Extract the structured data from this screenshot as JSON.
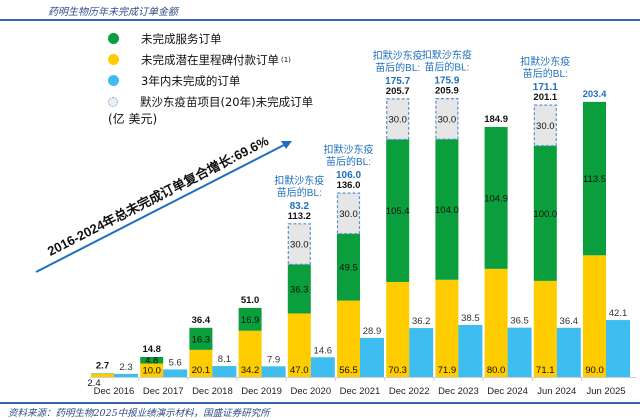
{
  "header": {
    "title": "药明生物历年未完成订单金额"
  },
  "footer": {
    "source": "资料来源：药明生物2025中报业绩演示材料，国盛证券研究所"
  },
  "colors": {
    "service": "#0a9e3c",
    "milestone": "#ffcc00",
    "three_year": "#3dbdf0",
    "vaccine": "#e6e6e6",
    "vaccine_border": "#5b8fd1",
    "accent_blue": "#1f6fbf",
    "rule": "#3a63ad"
  },
  "legend": {
    "items": [
      {
        "label": "未完成服务订单",
        "color": "#0a9e3c",
        "marker": "circle",
        "sup": ""
      },
      {
        "label": "未完成潜在里程碑付款订单",
        "color": "#ffcc00",
        "marker": "circle",
        "sup": "(1)"
      },
      {
        "label": "3年内未完成的订单",
        "color": "#3dbdf0",
        "marker": "circle",
        "sup": ""
      },
      {
        "label": "默沙东疫苗项目(20年)未完成订单",
        "color": "#e6e6e6",
        "marker": "dashed-circle",
        "sup": ""
      }
    ],
    "unit": "(亿 美元)"
  },
  "chart_data": {
    "type": "bar",
    "title": "药明生物历年未完成订单金额",
    "ylabel": "亿美元",
    "categories": [
      "Dec 2016",
      "Dec 2017",
      "Dec 2018",
      "Dec 2019",
      "Dec 2020",
      "Dec 2021",
      "Dec 2022",
      "Dec 2023",
      "Dec 2024",
      "Jun 2024",
      "Jun 2025"
    ],
    "series": [
      {
        "name": "未完成潜在里程碑付款订单",
        "stack": "total",
        "values": [
          2.4,
          10.0,
          20.1,
          34.2,
          47.0,
          56.5,
          70.3,
          71.9,
          80.0,
          71.1,
          90.0
        ]
      },
      {
        "name": "未完成服务订单",
        "stack": "total",
        "values": [
          0.3,
          4.8,
          16.3,
          16.9,
          36.3,
          49.5,
          105.4,
          104.0,
          104.9,
          100.0,
          113.5
        ]
      },
      {
        "name": "默沙东疫苗项目(20年)未完成订单",
        "stack": "total",
        "values": [
          0,
          0,
          0,
          0,
          30.0,
          30.0,
          30.0,
          30.0,
          0,
          30.0,
          0
        ]
      },
      {
        "name": "3年内未完成的订单",
        "stack": "separate",
        "values": [
          2.3,
          5.6,
          8.1,
          7.9,
          14.6,
          28.9,
          36.2,
          38.5,
          36.5,
          36.4,
          42.1
        ]
      }
    ],
    "totals": [
      2.7,
      14.8,
      36.4,
      51.0,
      113.2,
      136.0,
      205.7,
      205.9,
      184.9,
      201.1,
      203.4
    ],
    "ex_vaccine_callouts": [
      {
        "category": "Dec 2020",
        "label_line1": "扣默沙东疫",
        "label_line2": "苗后的BL:",
        "value": "83.2"
      },
      {
        "category": "Dec 2021",
        "label_line1": "扣默沙东疫",
        "label_line2": "苗后的BL:",
        "value": "106.0"
      },
      {
        "category": "Dec 2022",
        "label_line1": "扣默沙东疫",
        "label_line2": "苗后的BL:",
        "value": "175.7"
      },
      {
        "category": "Dec 2023",
        "label_line1": "扣默沙东疫",
        "label_line2": "苗后的BL:",
        "value": "175.9"
      },
      {
        "category": "Jun 2024",
        "label_line1": "扣默沙东疫",
        "label_line2": "苗后的BL:",
        "value": "171.1"
      }
    ],
    "annotation": "2016-2024年总未完成订单复合增长:69.6%",
    "ylim": [
      0,
      210
    ],
    "grid": false,
    "legend_position": "top-left"
  }
}
